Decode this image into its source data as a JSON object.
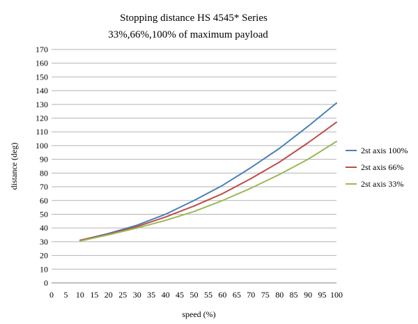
{
  "chart_data": {
    "type": "line",
    "title": "Stopping distance HS 4545* Series",
    "subtitle": "33%,66%,100% of maximum payload",
    "xlabel": "speed (%)",
    "ylabel": "distance (deg)",
    "xlim": [
      0,
      100
    ],
    "ylim": [
      0,
      170
    ],
    "x_ticks": [
      "0",
      "5",
      "10",
      "15",
      "20",
      "25",
      "30",
      "35",
      "40",
      "45",
      "50",
      "55",
      "60",
      "65",
      "70",
      "75",
      "80",
      "85",
      "90",
      "95",
      "100"
    ],
    "y_ticks": [
      "0",
      "10",
      "20",
      "30",
      "40",
      "50",
      "60",
      "70",
      "80",
      "90",
      "100",
      "110",
      "120",
      "130",
      "140",
      "150",
      "160",
      "170"
    ],
    "grid": true,
    "legend_position": "right",
    "x": [
      10,
      20,
      30,
      40,
      50,
      60,
      70,
      80,
      90,
      100
    ],
    "series": [
      {
        "name": "2st axis 100%",
        "color": "#4a7ebb",
        "values": [
          31,
          36,
          42,
          50,
          60,
          71,
          84,
          98,
          114,
          131
        ]
      },
      {
        "name": "2st axis 66%",
        "color": "#be4b48",
        "values": [
          31,
          35.5,
          41,
          48,
          56,
          65,
          76,
          88,
          102,
          117
        ]
      },
      {
        "name": "2st axis 33%",
        "color": "#98b954",
        "values": [
          30.5,
          35,
          40,
          45.5,
          52,
          60,
          69,
          79,
          90,
          103
        ]
      }
    ]
  }
}
